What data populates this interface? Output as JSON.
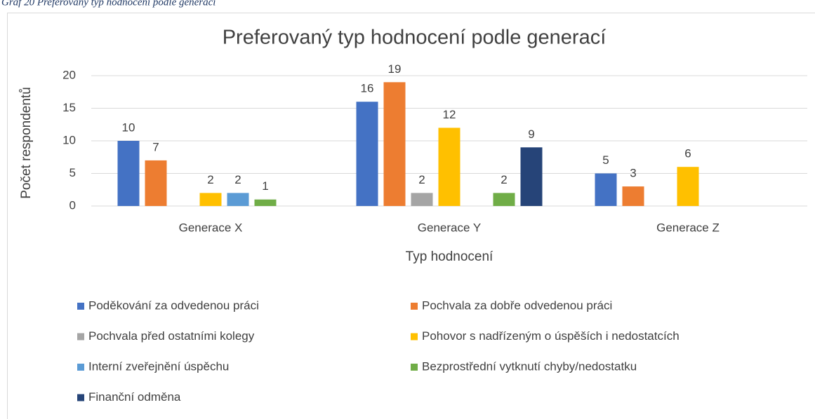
{
  "caption": "Graf 20 Preferovaný typ hodnocení podle generací",
  "chart_data": {
    "type": "bar",
    "title": "Preferovaný typ hodnocení podle generací",
    "xlabel": "Typ hodnocení",
    "ylabel": "Počet respondentů",
    "categories": [
      "Generace X",
      "Generace Y",
      "Generace Z"
    ],
    "series": [
      {
        "name": "Poděkování za odvedenou práci",
        "color": "#4472c4",
        "values": [
          10,
          16,
          5
        ]
      },
      {
        "name": "Pochvala za dobře odvedenou práci",
        "color": "#ed7d31",
        "values": [
          7,
          19,
          3
        ]
      },
      {
        "name": "Pochvala před ostatními kolegy",
        "color": "#a5a5a5",
        "values": [
          null,
          2,
          null
        ]
      },
      {
        "name": "Pohovor s nadřízeným o úspěších i nedostatcích",
        "color": "#ffc000",
        "values": [
          2,
          12,
          6
        ]
      },
      {
        "name": "Interní zveřejnění úspěchu",
        "color": "#5b9bd5",
        "values": [
          2,
          null,
          null
        ]
      },
      {
        "name": "Bezprostřední vytknutí chyby/nedostatku",
        "color": "#70ad47",
        "values": [
          1,
          2,
          null
        ]
      },
      {
        "name": "Finanční odměna",
        "color": "#264478",
        "values": [
          null,
          9,
          null
        ]
      }
    ],
    "ylim": [
      0,
      20
    ],
    "yticks": [
      0,
      5,
      10,
      15,
      20
    ],
    "grid": true,
    "legend": "bottom"
  }
}
